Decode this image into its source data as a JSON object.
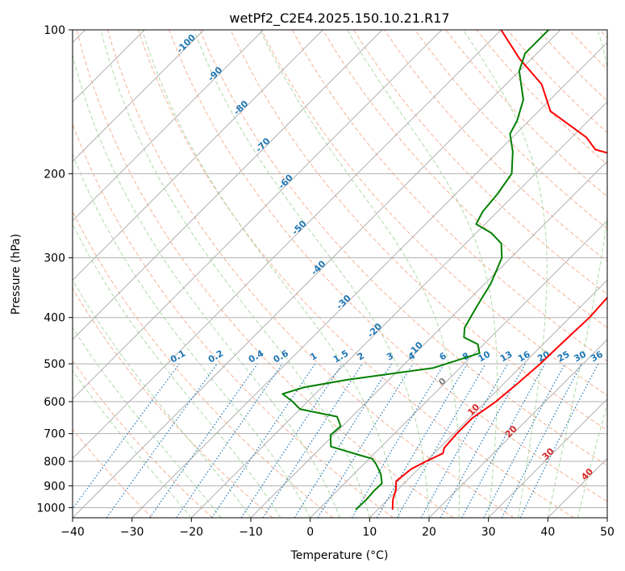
{
  "chart_data": {
    "type": "line",
    "title": "wetPf2_C2E4.2025.150.10.21.R17",
    "xlabel": "Temperature (°C)",
    "ylabel": "Pressure (hPa)",
    "xlim": [
      -40,
      50
    ],
    "ylim": [
      1050,
      100
    ],
    "y_scale": "log",
    "grid": true,
    "x_ticks": [
      -40,
      -30,
      -20,
      -10,
      0,
      10,
      20,
      30,
      40,
      50
    ],
    "y_ticks": [
      100,
      200,
      300,
      400,
      500,
      600,
      700,
      800,
      900,
      1000
    ],
    "series": [
      {
        "type": "temperature",
        "color": "#ff0000",
        "points": [
          [
            12.5,
            1010
          ],
          [
            10.8,
            960
          ],
          [
            9.8,
            920
          ],
          [
            8.3,
            880
          ],
          [
            8.8,
            830
          ],
          [
            10.0,
            800
          ],
          [
            11.5,
            770
          ],
          [
            10.8,
            750
          ],
          [
            10.5,
            700
          ],
          [
            10.5,
            650
          ],
          [
            11.7,
            600
          ],
          [
            12.3,
            550
          ],
          [
            12.8,
            500
          ],
          [
            13.0,
            450
          ],
          [
            13.3,
            400
          ],
          [
            12.8,
            350
          ],
          [
            11.8,
            300
          ],
          [
            10.0,
            250
          ],
          [
            7.0,
            220
          ],
          [
            0.5,
            195
          ],
          [
            -14,
            178
          ],
          [
            -17.5,
            168
          ],
          [
            -28,
            148
          ],
          [
            -34,
            130
          ],
          [
            -42,
            115
          ],
          [
            -50,
            100
          ]
        ]
      },
      {
        "type": "dewpoint",
        "color": "#008000",
        "points": [
          [
            6.3,
            1010
          ],
          [
            6.4,
            960
          ],
          [
            6.2,
            920
          ],
          [
            6.3,
            890
          ],
          [
            4.5,
            850
          ],
          [
            2.0,
            810
          ],
          [
            0.5,
            790
          ],
          [
            -2.5,
            775
          ],
          [
            -8.5,
            745
          ],
          [
            -10.5,
            705
          ],
          [
            -10.3,
            675
          ],
          [
            -12.5,
            645
          ],
          [
            -20,
            622
          ],
          [
            -22.5,
            600
          ],
          [
            -25.5,
            578
          ],
          [
            -23,
            560
          ],
          [
            -17,
            540
          ],
          [
            -4.5,
            510
          ],
          [
            0.8,
            475
          ],
          [
            -1.0,
            455
          ],
          [
            -4.5,
            440
          ],
          [
            -6.0,
            420
          ],
          [
            -7.5,
            380
          ],
          [
            -9.0,
            340
          ],
          [
            -11.5,
            300
          ],
          [
            -14.0,
            280
          ],
          [
            -17.5,
            266
          ],
          [
            -21.5,
            255
          ],
          [
            -22.5,
            240
          ],
          [
            -23,
            220
          ],
          [
            -24,
            200
          ],
          [
            -27.5,
            180
          ],
          [
            -31.0,
            165
          ],
          [
            -32.0,
            155
          ],
          [
            -34.5,
            140
          ],
          [
            -40.0,
            122
          ],
          [
            -42.0,
            112
          ],
          [
            -42.0,
            100
          ]
        ]
      }
    ],
    "isotherm_labels": [
      "-100",
      "-90",
      "-80",
      "-70",
      "-60",
      "-50",
      "-40",
      "-30",
      "-20",
      "-10",
      "0",
      "10",
      "20",
      "30",
      "40"
    ],
    "mixing_ratio_labels": [
      "0.1",
      "0.2",
      "0.4",
      "0.6",
      "1",
      "1.5",
      "2",
      "3",
      "4",
      "6",
      "8",
      "10",
      "13",
      "16",
      "20",
      "25",
      "30",
      "36"
    ],
    "colors": {
      "temperature": "#ff0000",
      "dewpoint": "#008000",
      "dry_adiabat": "#f4a582",
      "moist_adiabat": "#a6d6a0",
      "mixing_ratio": "#1f77b4",
      "isotherm_label_cold": "#1f77b4",
      "isotherm_label_zero": "#808080",
      "isotherm_label_warm": "#d62728",
      "grid": "#b0b0b0",
      "reference_curve": "#d2b48c"
    }
  }
}
